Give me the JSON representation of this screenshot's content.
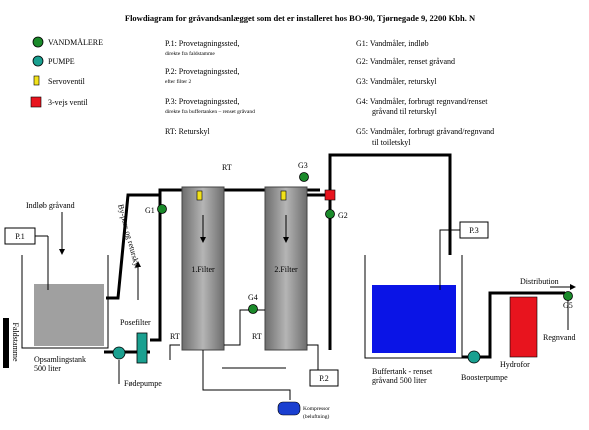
{
  "title": "Flowdiagram for gråvandsanlægget som det er installeret hos BO-90, Tjørnegade 9, 2200 Kbh. N",
  "legend": {
    "symbols": [
      "VANDMÅLERE",
      "PUMPE",
      "Servoventil",
      "3-vejs ventil"
    ],
    "sample_points": [
      {
        "label": "P.1: Provetagningssted,",
        "note": "direkte fra faldstamme"
      },
      {
        "label": "P.2: Provetagningssted,",
        "note": "efter filter 2"
      },
      {
        "label": "P.3: Provetagningssted,",
        "note": "direkte fra buffertanken – renset gråvand"
      }
    ],
    "return_flush": "RT: Returskyl",
    "meters": [
      [
        "G1: Vandmåler, indløb"
      ],
      [
        "G2: Vandmåler, renset gråvand"
      ],
      [
        "G3: Vandmåler, returskyl"
      ],
      [
        "G4: Vandmåler, forbrugt regnvand/renset",
        "gråvand til returskyl"
      ],
      [
        "G5: Vandmåler, forbrugt gråvand/regnvand",
        "til toiletskyl"
      ]
    ]
  },
  "diagram": {
    "inlet": "Indløb gråvand",
    "p1": "P.1",
    "bypass": "By-pass og returskyl",
    "downpipe": "Faldstamme",
    "collection_tank": [
      "Opsamlingstank",
      "500 liter"
    ],
    "bag_filter": "Posefilter",
    "feed_pump": "Fødepumpe",
    "rt_labels": [
      "RT",
      "RT",
      "RT"
    ],
    "meters": [
      "G1",
      "G2",
      "G3",
      "G4",
      "G5"
    ],
    "filters": [
      "1.Filter",
      "2.Filter"
    ],
    "p2": "P.2",
    "p3": "P.3",
    "compressor": [
      "Kompressor",
      "(beluftning)"
    ],
    "buffer_tank": [
      "Buffertank - renset",
      "gråvand 500 liter"
    ],
    "booster_pump": "Boosterpumpe",
    "distribution": "Distribution",
    "hydrophore": "Hydrofor",
    "rainwater": "Regnvand"
  }
}
